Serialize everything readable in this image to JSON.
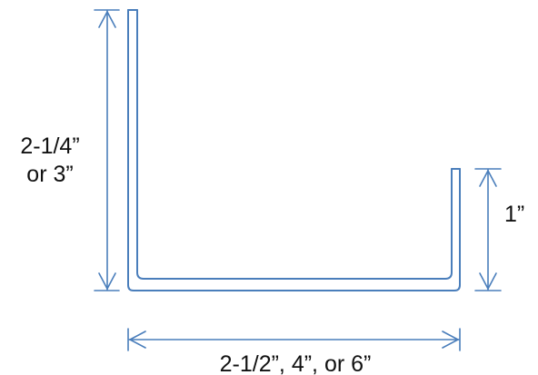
{
  "colors": {
    "profile": "#4a7ebb",
    "dimension": "#4a7ebb",
    "text": "#111111",
    "background": "#ffffff"
  },
  "labels": {
    "left_height_line1": "2-1/4”",
    "left_height_line2": "or 3”",
    "right_height": "1”",
    "width": "2-1/2”, 4”, or 6”"
  }
}
